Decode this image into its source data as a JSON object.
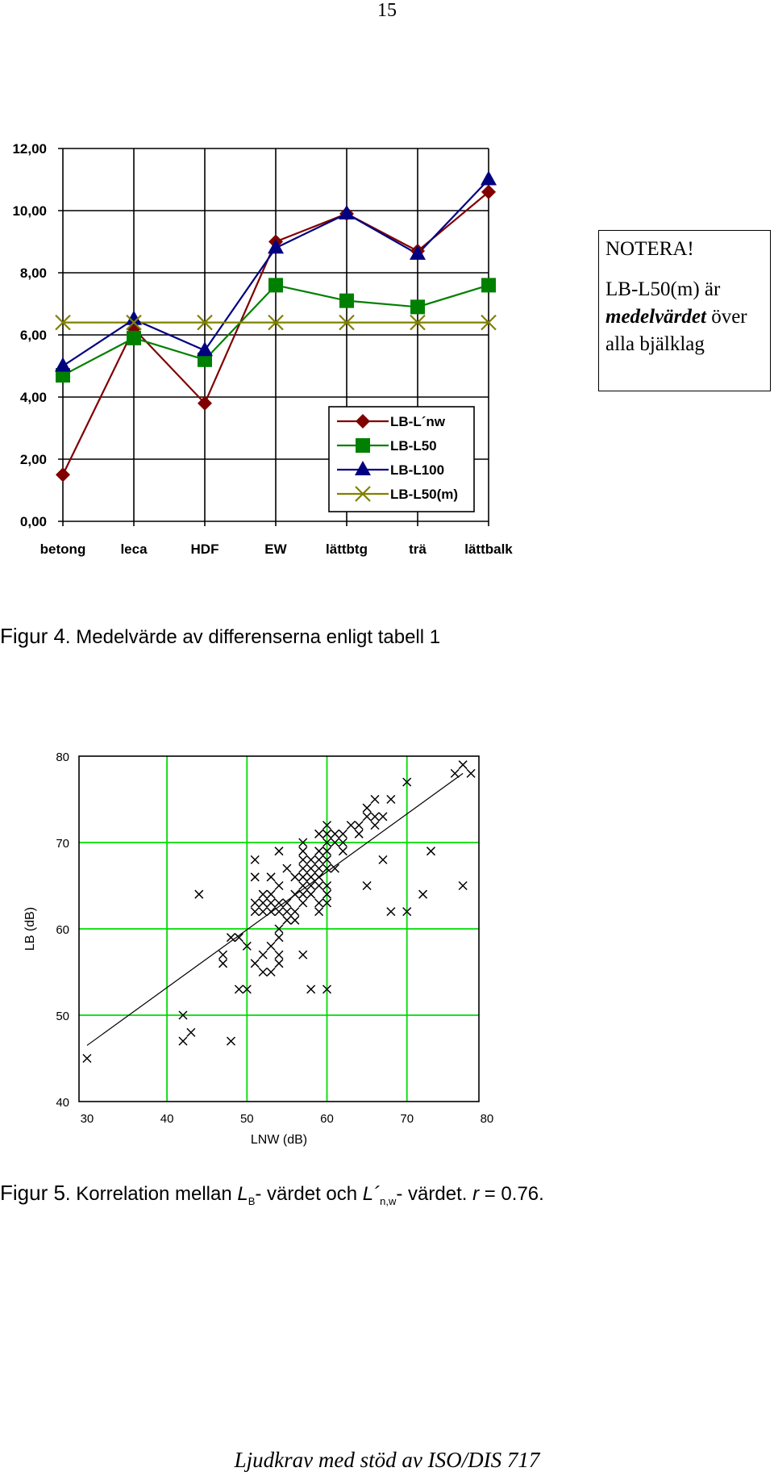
{
  "page": {
    "number": "15",
    "footer": "Ljudkrav med stöd av ISO/DIS 717"
  },
  "note": {
    "heading": "NOTERA!",
    "line1": "LB-L50(m) är",
    "emphasis": "medelvärdet",
    "line2_rest": " över",
    "line3": "alla bjälklag"
  },
  "fig4_caption": {
    "label": "Figur 4",
    "text": ". Medelvärde av differenserna enligt tabell 1"
  },
  "fig5_caption": {
    "label": "Figur 5",
    "t1": ".  Korrelation mellan ",
    "lb": "L",
    "lb_sub": "B",
    "t2": "- värdet och ",
    "ln": "L´",
    "ln_sub": "n,w",
    "t3": "- värdet. ",
    "r_label": "r",
    "t4": " = 0.76."
  },
  "chart_data": [
    {
      "type": "line",
      "categories": [
        "betong",
        "leca",
        "HDF",
        "EW",
        "lättbtg",
        "trä",
        "lättbalk"
      ],
      "ylim": [
        0,
        12
      ],
      "yticks": [
        "0,00",
        "2,00",
        "4,00",
        "6,00",
        "8,00",
        "10,00",
        "12,00"
      ],
      "grid": true,
      "legend_position": "bottom-right",
      "series": [
        {
          "name": "LB-L´nw",
          "values": [
            1.5,
            6.2,
            3.8,
            9.0,
            9.9,
            8.7,
            10.6
          ],
          "color": "#800000",
          "marker": "diamond"
        },
        {
          "name": "LB-L50",
          "values": [
            4.7,
            5.9,
            5.2,
            7.6,
            7.1,
            6.9,
            7.6
          ],
          "color": "#008000",
          "marker": "square"
        },
        {
          "name": "LB-L100",
          "values": [
            5.0,
            6.5,
            5.5,
            8.8,
            9.9,
            8.6,
            11.0
          ],
          "color": "#000080",
          "marker": "triangle"
        },
        {
          "name": "LB-L50(m)",
          "values": [
            6.4,
            6.4,
            6.4,
            6.4,
            6.4,
            6.4,
            6.4
          ],
          "color": "#808000",
          "marker": "x"
        }
      ]
    },
    {
      "type": "scatter",
      "xlabel": "LNW (dB)",
      "ylabel": "LB (dB)",
      "xlim": [
        29,
        79
      ],
      "ylim": [
        40,
        80
      ],
      "xticks": [
        30,
        40,
        50,
        60,
        70,
        80
      ],
      "yticks": [
        40,
        50,
        60,
        70,
        80
      ],
      "grid": true,
      "grid_color": "#00dd00",
      "regression_line": {
        "from": [
          30,
          46.5
        ],
        "to": [
          77,
          78
        ]
      },
      "points": [
        [
          30,
          45
        ],
        [
          42,
          50
        ],
        [
          42,
          47
        ],
        [
          43,
          48
        ],
        [
          44,
          64
        ],
        [
          47,
          57
        ],
        [
          47,
          56
        ],
        [
          48,
          59
        ],
        [
          48,
          47
        ],
        [
          49,
          59
        ],
        [
          49,
          53
        ],
        [
          50,
          53
        ],
        [
          50,
          58
        ],
        [
          51,
          68
        ],
        [
          51,
          66
        ],
        [
          51,
          63
        ],
        [
          51,
          62
        ],
        [
          51,
          56
        ],
        [
          52,
          64
        ],
        [
          52,
          63
        ],
        [
          52,
          62
        ],
        [
          52,
          57
        ],
        [
          52,
          55
        ],
        [
          53,
          66
        ],
        [
          53,
          64
        ],
        [
          53,
          63
        ],
        [
          53,
          62
        ],
        [
          53,
          58
        ],
        [
          53,
          55
        ],
        [
          54,
          69
        ],
        [
          54,
          65
        ],
        [
          54,
          63
        ],
        [
          54,
          62
        ],
        [
          54,
          60
        ],
        [
          54,
          59
        ],
        [
          54,
          57
        ],
        [
          54,
          56
        ],
        [
          55,
          67
        ],
        [
          55,
          63
        ],
        [
          55,
          62
        ],
        [
          55,
          61
        ],
        [
          56,
          66
        ],
        [
          56,
          64
        ],
        [
          56,
          62
        ],
        [
          56,
          61
        ],
        [
          57,
          70
        ],
        [
          57,
          69
        ],
        [
          57,
          68
        ],
        [
          57,
          67
        ],
        [
          57,
          66
        ],
        [
          57,
          65
        ],
        [
          57,
          64
        ],
        [
          57,
          63
        ],
        [
          57,
          57
        ],
        [
          58,
          68
        ],
        [
          58,
          67
        ],
        [
          58,
          66
        ],
        [
          58,
          65
        ],
        [
          58,
          64
        ],
        [
          58,
          53
        ],
        [
          59,
          71
        ],
        [
          59,
          69
        ],
        [
          59,
          68
        ],
        [
          59,
          67
        ],
        [
          59,
          66
        ],
        [
          59,
          65
        ],
        [
          59,
          63
        ],
        [
          59,
          62
        ],
        [
          60,
          72
        ],
        [
          60,
          71
        ],
        [
          60,
          70
        ],
        [
          60,
          69
        ],
        [
          60,
          68
        ],
        [
          60,
          67
        ],
        [
          60,
          65
        ],
        [
          60,
          64
        ],
        [
          60,
          63
        ],
        [
          60,
          53
        ],
        [
          61,
          71
        ],
        [
          61,
          70
        ],
        [
          61,
          67
        ],
        [
          62,
          71
        ],
        [
          62,
          70
        ],
        [
          62,
          69
        ],
        [
          63,
          72
        ],
        [
          64,
          72
        ],
        [
          64,
          71
        ],
        [
          65,
          74
        ],
        [
          65,
          73
        ],
        [
          65,
          65
        ],
        [
          66,
          75
        ],
        [
          66,
          73
        ],
        [
          66,
          72
        ],
        [
          67,
          73
        ],
        [
          67,
          68
        ],
        [
          68,
          75
        ],
        [
          68,
          62
        ],
        [
          70,
          77
        ],
        [
          70,
          62
        ],
        [
          72,
          64
        ],
        [
          73,
          69
        ],
        [
          76,
          78
        ],
        [
          77,
          79
        ],
        [
          77,
          65
        ],
        [
          78,
          78
        ]
      ]
    }
  ]
}
